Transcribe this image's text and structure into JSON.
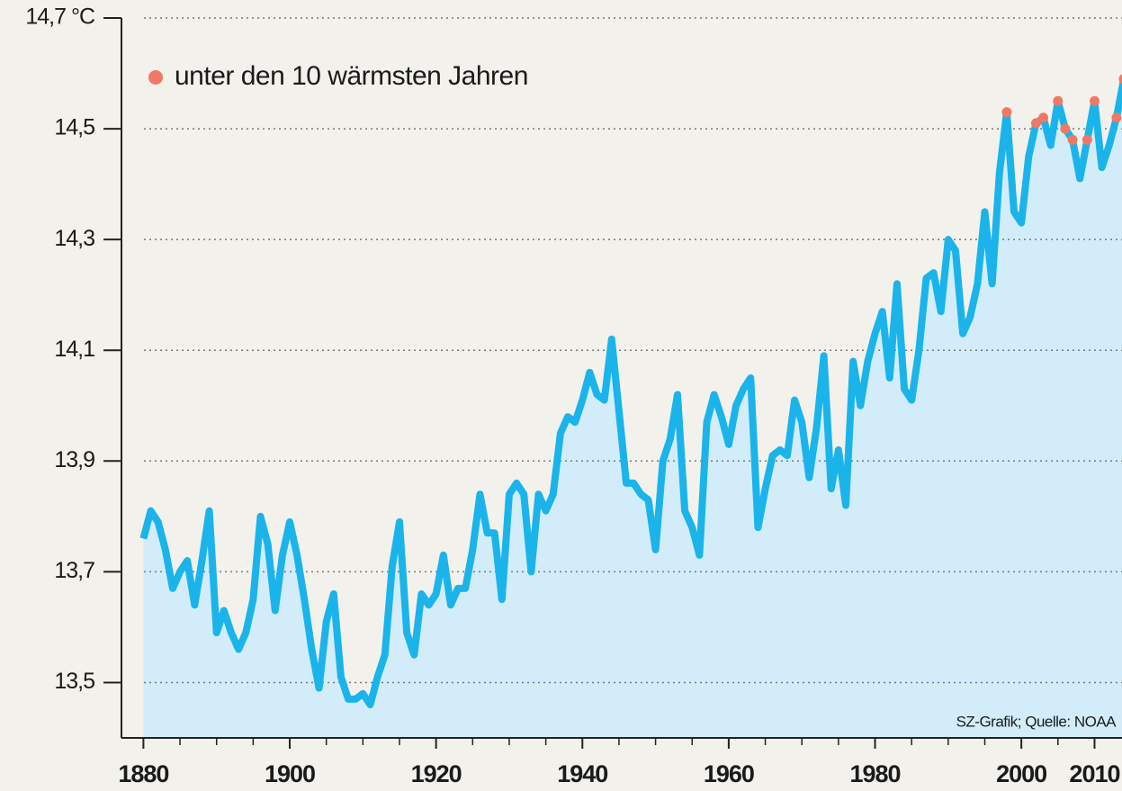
{
  "chart_data": {
    "type": "line",
    "x": [
      1880,
      1881,
      1882,
      1883,
      1884,
      1885,
      1886,
      1887,
      1888,
      1889,
      1890,
      1891,
      1892,
      1893,
      1894,
      1895,
      1896,
      1897,
      1898,
      1899,
      1900,
      1901,
      1902,
      1903,
      1904,
      1905,
      1906,
      1907,
      1908,
      1909,
      1910,
      1911,
      1912,
      1913,
      1914,
      1915,
      1916,
      1917,
      1918,
      1919,
      1920,
      1921,
      1922,
      1923,
      1924,
      1925,
      1926,
      1927,
      1928,
      1929,
      1930,
      1931,
      1932,
      1933,
      1934,
      1935,
      1936,
      1937,
      1938,
      1939,
      1940,
      1941,
      1942,
      1943,
      1944,
      1945,
      1946,
      1947,
      1948,
      1949,
      1950,
      1951,
      1952,
      1953,
      1954,
      1955,
      1956,
      1957,
      1958,
      1959,
      1960,
      1961,
      1962,
      1963,
      1964,
      1965,
      1966,
      1967,
      1968,
      1969,
      1970,
      1971,
      1972,
      1973,
      1974,
      1975,
      1976,
      1977,
      1978,
      1979,
      1980,
      1981,
      1982,
      1983,
      1984,
      1985,
      1986,
      1987,
      1988,
      1989,
      1990,
      1991,
      1992,
      1993,
      1994,
      1995,
      1996,
      1997,
      1998,
      1999,
      2000,
      2001,
      2002,
      2003,
      2004,
      2005,
      2006,
      2007,
      2008,
      2009,
      2010,
      2011,
      2012,
      2013,
      2014
    ],
    "values": [
      13.76,
      13.81,
      13.79,
      13.74,
      13.67,
      13.7,
      13.72,
      13.64,
      13.72,
      13.81,
      13.59,
      13.63,
      13.59,
      13.56,
      13.59,
      13.65,
      13.8,
      13.75,
      13.63,
      13.73,
      13.79,
      13.73,
      13.65,
      13.56,
      13.49,
      13.61,
      13.66,
      13.51,
      13.47,
      13.47,
      13.48,
      13.46,
      13.51,
      13.55,
      13.71,
      13.79,
      13.59,
      13.55,
      13.66,
      13.64,
      13.66,
      13.73,
      13.64,
      13.67,
      13.67,
      13.74,
      13.84,
      13.77,
      13.77,
      13.65,
      13.84,
      13.86,
      13.84,
      13.7,
      13.84,
      13.81,
      13.84,
      13.95,
      13.98,
      13.97,
      14.01,
      14.06,
      14.02,
      14.01,
      14.12,
      13.99,
      13.86,
      13.86,
      13.84,
      13.83,
      13.74,
      13.9,
      13.94,
      14.02,
      13.81,
      13.78,
      13.73,
      13.97,
      14.02,
      13.98,
      13.93,
      14.0,
      14.03,
      14.05,
      13.78,
      13.85,
      13.91,
      13.92,
      13.91,
      14.01,
      13.97,
      13.87,
      13.96,
      14.09,
      13.85,
      13.92,
      13.82,
      14.08,
      14.0,
      14.08,
      14.13,
      14.17,
      14.05,
      14.22,
      14.03,
      14.01,
      14.1,
      14.23,
      14.24,
      14.17,
      14.3,
      14.28,
      14.13,
      14.16,
      14.22,
      14.35,
      14.22,
      14.42,
      14.53,
      14.35,
      14.33,
      14.45,
      14.51,
      14.52,
      14.47,
      14.55,
      14.5,
      14.48,
      14.41,
      14.48,
      14.55,
      14.43,
      14.47,
      14.52,
      14.59
    ],
    "color": "#1ab4ea",
    "area_color": "#d2edf9",
    "highlighted_x": [
      1998,
      2002,
      2003,
      2005,
      2006,
      2007,
      2009,
      2010,
      2013,
      2014
    ],
    "highlight_label": "unter den 10 wärmsten Jahren",
    "highlight_color": "#f07864",
    "xlim": [
      1877,
      2014
    ],
    "ylim": [
      13.4,
      14.7
    ],
    "xticks": [
      1880,
      1900,
      1920,
      1940,
      1960,
      1980,
      2000,
      2010
    ],
    "minor_xticks": [
      1885,
      1890,
      1895,
      1905,
      1910,
      1915,
      1925,
      1930,
      1935,
      1945,
      1950,
      1955,
      1965,
      1970,
      1975,
      1985,
      1990,
      1995,
      2005
    ],
    "yticks": [
      {
        "value": 13.5,
        "label": "13,5"
      },
      {
        "value": 13.7,
        "label": "13,7"
      },
      {
        "value": 13.9,
        "label": "13,9"
      },
      {
        "value": 14.1,
        "label": "14,1"
      },
      {
        "value": 14.3,
        "label": "14,3"
      },
      {
        "value": 14.5,
        "label": "14,5"
      },
      {
        "value": 14.7,
        "label": "14,7 °C"
      }
    ],
    "grid": true,
    "source": "SZ-Grafik; Quelle: NOAA"
  }
}
